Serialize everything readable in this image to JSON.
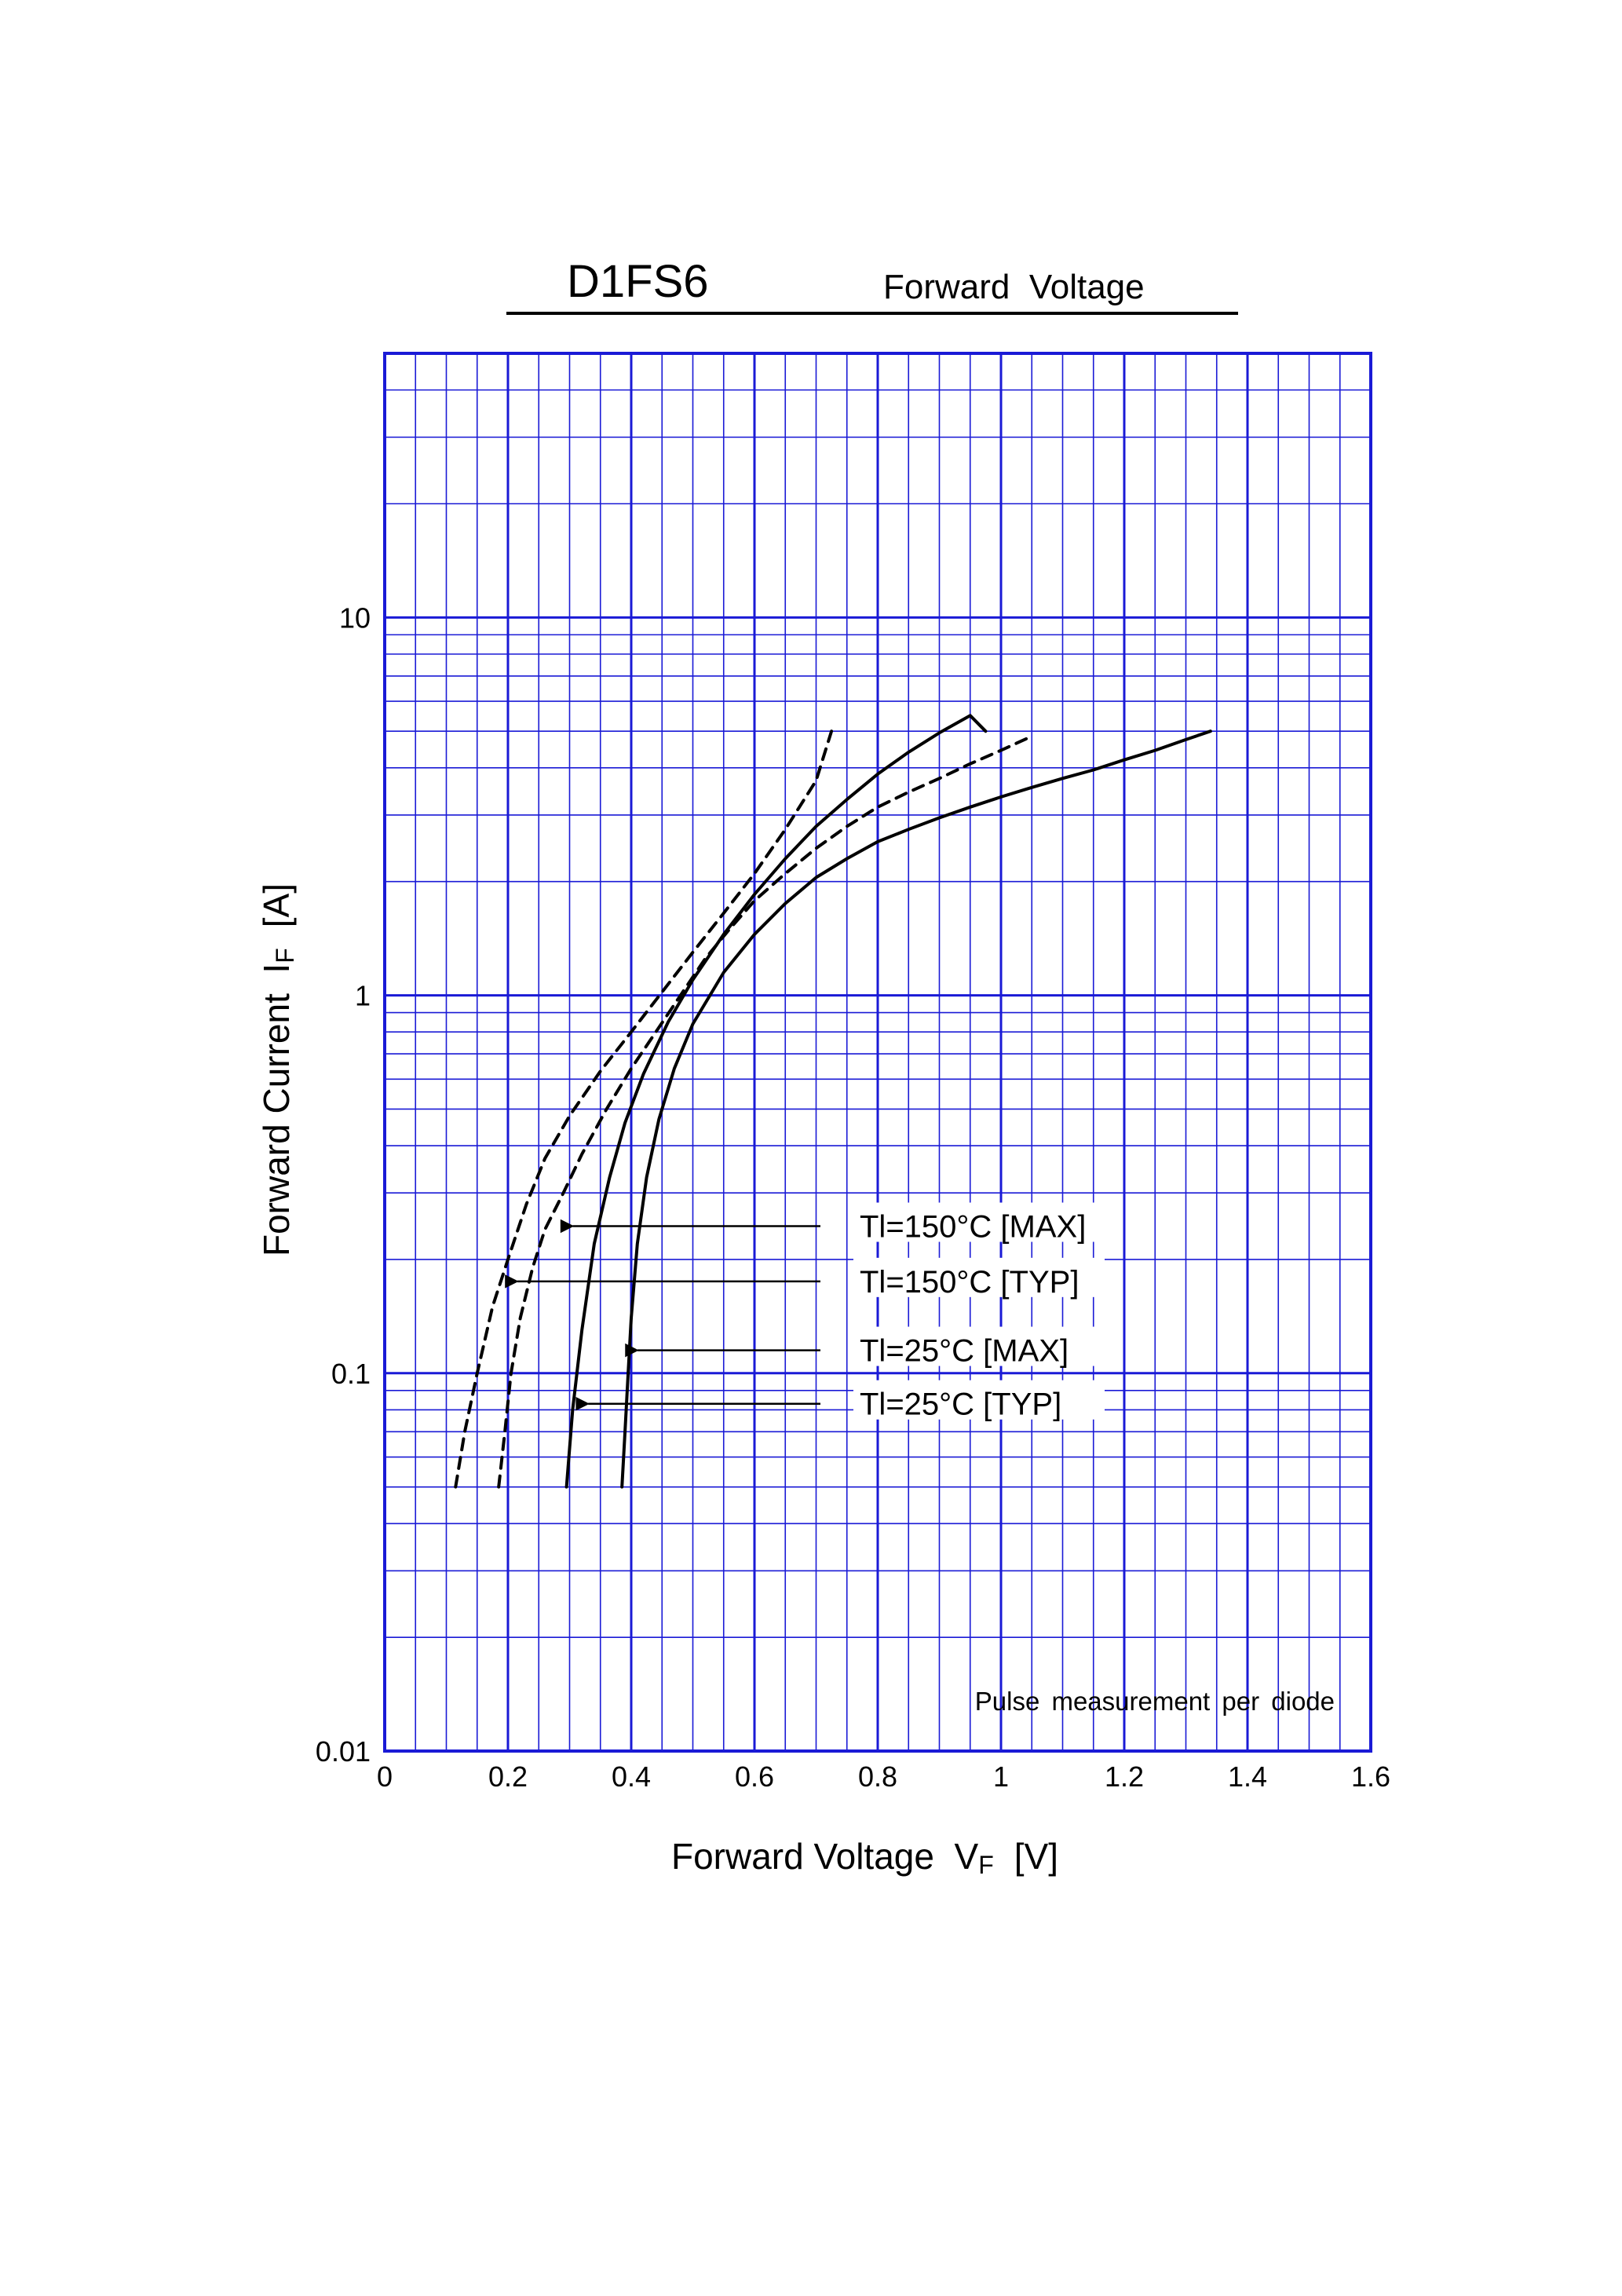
{
  "header": {
    "part_number": "D1FS6",
    "subtitle": "Forward  Voltage"
  },
  "colors": {
    "grid": "#1a1ad6",
    "curve": "#000000",
    "background": "#ffffff"
  },
  "chart_data": {
    "type": "line",
    "title": "D1FS6",
    "subtitle": "Forward  Voltage",
    "xlabel": {
      "main": "Forward Voltage  V",
      "sub": "F",
      "unit": "[V]"
    },
    "ylabel": {
      "main": "Forward Current  I",
      "sub": "F",
      "unit": "[A]"
    },
    "xlim": [
      0,
      1.6
    ],
    "ylim": [
      0.01,
      50
    ],
    "yscale": "log",
    "grid": true,
    "x_ticks": [
      0,
      0.2,
      0.4,
      0.6,
      0.8,
      1.0,
      1.2,
      1.4,
      1.6
    ],
    "x_tick_labels": [
      "0",
      "0.2",
      "0.4",
      "0.6",
      "0.8",
      "1",
      "1.2",
      "1.4",
      "1.6"
    ],
    "y_ticks": [
      0.01,
      0.1,
      1,
      10
    ],
    "y_tick_labels": [
      "0.01",
      "0.1",
      "1",
      "10"
    ],
    "annotation": "Pulse measurement per diode",
    "legend_placement": "center-right",
    "series": [
      {
        "name": "Tl=150°C [MAX]",
        "style": "solid",
        "label_y": 0.245,
        "arrow_x": 0.295,
        "points": [
          [
            0.295,
            0.05
          ],
          [
            0.305,
            0.08
          ],
          [
            0.32,
            0.13
          ],
          [
            0.34,
            0.22
          ],
          [
            0.365,
            0.33
          ],
          [
            0.39,
            0.46
          ],
          [
            0.42,
            0.62
          ],
          [
            0.46,
            0.85
          ],
          [
            0.5,
            1.1
          ],
          [
            0.55,
            1.45
          ],
          [
            0.6,
            1.85
          ],
          [
            0.65,
            2.3
          ],
          [
            0.7,
            2.8
          ],
          [
            0.75,
            3.3
          ],
          [
            0.8,
            3.85
          ],
          [
            0.85,
            4.4
          ],
          [
            0.9,
            4.95
          ],
          [
            0.95,
            5.5
          ],
          [
            0.975,
            5.0
          ]
        ]
      },
      {
        "name": "Tl=150°C [TYP]",
        "style": "dashed",
        "label_y": 0.175,
        "arrow_x": 0.205,
        "points": [
          [
            0.115,
            0.05
          ],
          [
            0.13,
            0.07
          ],
          [
            0.15,
            0.1
          ],
          [
            0.175,
            0.15
          ],
          [
            0.2,
            0.2
          ],
          [
            0.23,
            0.28
          ],
          [
            0.26,
            0.37
          ],
          [
            0.3,
            0.48
          ],
          [
            0.35,
            0.63
          ],
          [
            0.4,
            0.8
          ],
          [
            0.45,
            1.02
          ],
          [
            0.5,
            1.3
          ],
          [
            0.55,
            1.65
          ],
          [
            0.6,
            2.1
          ],
          [
            0.65,
            2.75
          ],
          [
            0.7,
            3.7
          ],
          [
            0.725,
            5.0
          ]
        ]
      },
      {
        "name": "Tl=25°C [MAX]",
        "style": "solid",
        "label_y": 0.115,
        "arrow_x": 0.4,
        "points": [
          [
            0.385,
            0.05
          ],
          [
            0.39,
            0.07
          ],
          [
            0.395,
            0.1
          ],
          [
            0.4,
            0.14
          ],
          [
            0.41,
            0.22
          ],
          [
            0.425,
            0.33
          ],
          [
            0.445,
            0.47
          ],
          [
            0.47,
            0.64
          ],
          [
            0.5,
            0.84
          ],
          [
            0.55,
            1.15
          ],
          [
            0.6,
            1.45
          ],
          [
            0.65,
            1.75
          ],
          [
            0.7,
            2.05
          ],
          [
            0.75,
            2.3
          ],
          [
            0.8,
            2.55
          ],
          [
            0.85,
            2.75
          ],
          [
            0.9,
            2.95
          ],
          [
            0.95,
            3.15
          ],
          [
            1.0,
            3.35
          ],
          [
            1.05,
            3.55
          ],
          [
            1.1,
            3.75
          ],
          [
            1.15,
            3.95
          ],
          [
            1.2,
            4.2
          ],
          [
            1.25,
            4.45
          ],
          [
            1.3,
            4.75
          ],
          [
            1.34,
            5.0
          ]
        ]
      },
      {
        "name": "Tl=25°C [TYP]",
        "style": "dashed",
        "label_y": 0.083,
        "arrow_x": 0.32,
        "points": [
          [
            0.185,
            0.05
          ],
          [
            0.195,
            0.07
          ],
          [
            0.205,
            0.1
          ],
          [
            0.22,
            0.14
          ],
          [
            0.24,
            0.19
          ],
          [
            0.26,
            0.24
          ],
          [
            0.29,
            0.3
          ],
          [
            0.32,
            0.38
          ],
          [
            0.36,
            0.5
          ],
          [
            0.4,
            0.64
          ],
          [
            0.44,
            0.8
          ],
          [
            0.48,
            1.0
          ],
          [
            0.52,
            1.25
          ],
          [
            0.56,
            1.5
          ],
          [
            0.6,
            1.78
          ],
          [
            0.65,
            2.1
          ],
          [
            0.7,
            2.45
          ],
          [
            0.75,
            2.8
          ],
          [
            0.8,
            3.15
          ],
          [
            0.85,
            3.45
          ],
          [
            0.9,
            3.75
          ],
          [
            0.95,
            4.1
          ],
          [
            1.0,
            4.45
          ],
          [
            1.05,
            4.85
          ]
        ]
      }
    ]
  }
}
